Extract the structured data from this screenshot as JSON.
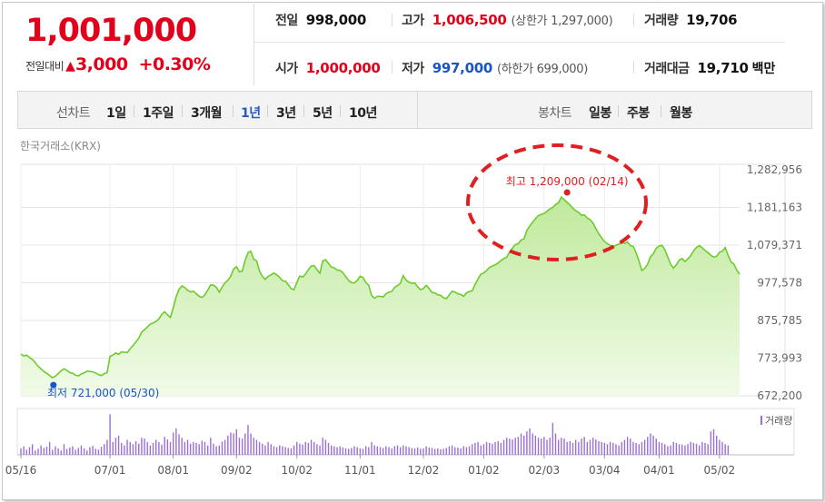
{
  "quote": {
    "price": "1,001,000",
    "change_label": "전일대비",
    "change_arrow": "▲",
    "change_value": "3,000",
    "change_pct": "+0.30%",
    "stats": {
      "prev_close_label": "전일",
      "prev_close": "998,000",
      "high_label": "고가",
      "high": "1,006,500",
      "upper_limit": "(상한가 1,297,000)",
      "volume_label": "거래량",
      "volume": "19,706",
      "open_label": "시가",
      "open": "1,000,000",
      "low_label": "저가",
      "low": "997,000",
      "lower_limit": "(하한가 699,000)",
      "turnover_label": "거래대금",
      "turnover": "19,710",
      "turnover_unit": "백만"
    }
  },
  "tabs": {
    "line_label": "선차트",
    "line_items": [
      "1일",
      "1주일",
      "3개월",
      "1년",
      "3년",
      "5년",
      "10년"
    ],
    "line_active": "1년",
    "candle_label": "봉차트",
    "candle_items": [
      "일봉",
      "주봉",
      "월봉"
    ]
  },
  "exchange": "한국거래소(KRX)",
  "colors": {
    "up": "#e3001b",
    "down": "#1a55c7",
    "line": "#6ecb2c",
    "area_top": "#bfe99c",
    "area_bottom": "#f1fbe8",
    "volume": "#9b6fd6",
    "highlight": "#e02020"
  },
  "chart_data": {
    "type": "area",
    "xlabel": "",
    "ylabel": "",
    "x_ticks": [
      "05/16",
      "07/01",
      "08/01",
      "09/02",
      "10/02",
      "11/01",
      "12/02",
      "01/02",
      "02/03",
      "03/04",
      "04/01",
      "05/02"
    ],
    "x_tick_index": [
      0,
      31,
      53,
      75,
      96,
      118,
      140,
      161,
      182,
      203,
      222,
      243
    ],
    "y_ticks": [
      "1,282,956",
      "1,181,163",
      "1,079,371",
      "977,578",
      "875,785",
      "773,993",
      "672,200"
    ],
    "ylim": [
      672200,
      1282956
    ],
    "grid": true,
    "series": [
      {
        "values": [
          785000,
          780000,
          782000,
          776000,
          770000,
          762000,
          752000,
          745000,
          738000,
          733000,
          727000,
          721000,
          725000,
          732000,
          740000,
          745000,
          741000,
          735000,
          733000,
          728000,
          726000,
          731000,
          734000,
          739000,
          738000,
          737000,
          734000,
          729000,
          727000,
          732000,
          735000,
          779000,
          782000,
          788000,
          784000,
          791000,
          790000,
          789000,
          799000,
          808000,
          818000,
          828000,
          844000,
          851000,
          858000,
          866000,
          869000,
          873000,
          880000,
          892000,
          899000,
          891000,
          884000,
          910000,
          940000,
          960000,
          969000,
          965000,
          957000,
          953000,
          955000,
          948000,
          941000,
          938000,
          945000,
          958000,
          972000,
          971000,
          965000,
          952000,
          966000,
          977000,
          984000,
          996000,
          1015000,
          1021000,
          1007000,
          1009000,
          1038000,
          1059000,
          1063000,
          1041000,
          1037000,
          1009000,
          995000,
          987000,
          995000,
          999000,
          1004000,
          999000,
          992000,
          983000,
          982000,
          972000,
          962000,
          959000,
          978000,
          996000,
          993000,
          1001000,
          1013000,
          1023000,
          1024000,
          1013000,
          1003000,
          1037000,
          1040000,
          1030000,
          1020000,
          1018000,
          1012000,
          1011000,
          1005000,
          994000,
          984000,
          978000,
          977000,
          984000,
          995000,
          992000,
          978000,
          971000,
          943000,
          936000,
          941000,
          941000,
          939000,
          948000,
          952000,
          954000,
          965000,
          970000,
          976000,
          997000,
          985000,
          979000,
          976000,
          977000,
          967000,
          959000,
          962000,
          971000,
          962000,
          951000,
          950000,
          945000,
          944000,
          937000,
          935000,
          945000,
          955000,
          952000,
          948000,
          946000,
          941000,
          950000,
          954000,
          956000,
          973000,
          988000,
          1001000,
          1004000,
          1011000,
          1019000,
          1023000,
          1026000,
          1031000,
          1038000,
          1043000,
          1047000,
          1061000,
          1071000,
          1081000,
          1083000,
          1093000,
          1096000,
          1119000,
          1131000,
          1141000,
          1151000,
          1159000,
          1162000,
          1165000,
          1171000,
          1177000,
          1181000,
          1189000,
          1194000,
          1209000,
          1202000,
          1195000,
          1188000,
          1179000,
          1172000,
          1168000,
          1160000,
          1161000,
          1153000,
          1148000,
          1139000,
          1124000,
          1110000,
          1099000,
          1089000,
          1083000,
          1079000,
          1076000,
          1079000,
          1082000,
          1088000,
          1084000,
          1088000,
          1078000,
          1076000,
          1059000,
          1036000,
          1011000,
          1016000,
          1028000,
          1048000,
          1056000,
          1071000,
          1077000,
          1079000,
          1067000,
          1047000,
          1028000,
          1017000,
          1026000,
          1039000,
          1043000,
          1035000,
          1042000,
          1051000,
          1064000,
          1073000,
          1078000,
          1072000,
          1065000,
          1059000,
          1052000,
          1047000,
          1049000,
          1060000,
          1063000,
          1073000,
          1052000,
          1034000,
          1028000,
          1012000,
          1001000
        ]
      }
    ],
    "volume_label": "거래량",
    "volume_relative": [
      0.15,
      0.2,
      0.12,
      0.18,
      0.25,
      0.1,
      0.14,
      0.22,
      0.16,
      0.19,
      0.3,
      0.12,
      0.2,
      0.15,
      0.1,
      0.25,
      0.14,
      0.17,
      0.2,
      0.12,
      0.16,
      0.22,
      0.15,
      0.1,
      0.18,
      0.21,
      0.14,
      0.12,
      0.19,
      0.25,
      0.35,
      0.95,
      0.3,
      0.4,
      0.45,
      0.28,
      0.22,
      0.35,
      0.3,
      0.25,
      0.32,
      0.26,
      0.4,
      0.38,
      0.3,
      0.22,
      0.28,
      0.35,
      0.3,
      0.24,
      0.42,
      0.36,
      0.3,
      0.52,
      0.62,
      0.48,
      0.4,
      0.3,
      0.35,
      0.26,
      0.3,
      0.28,
      0.25,
      0.33,
      0.3,
      0.22,
      0.4,
      0.26,
      0.2,
      0.22,
      0.31,
      0.35,
      0.45,
      0.52,
      0.5,
      0.6,
      0.4,
      0.38,
      0.5,
      0.7,
      0.5,
      0.4,
      0.35,
      0.3,
      0.26,
      0.22,
      0.3,
      0.25,
      0.2,
      0.18,
      0.22,
      0.2,
      0.18,
      0.16,
      0.15,
      0.22,
      0.3,
      0.26,
      0.24,
      0.3,
      0.28,
      0.35,
      0.3,
      0.25,
      0.22,
      0.4,
      0.35,
      0.28,
      0.22,
      0.2,
      0.18,
      0.2,
      0.17,
      0.15,
      0.14,
      0.16,
      0.2,
      0.18,
      0.15,
      0.14,
      0.2,
      0.18,
      0.3,
      0.22,
      0.2,
      0.18,
      0.16,
      0.2,
      0.18,
      0.15,
      0.2,
      0.22,
      0.18,
      0.22,
      0.2,
      0.18,
      0.16,
      0.15,
      0.17,
      0.14,
      0.15,
      0.2,
      0.17,
      0.16,
      0.14,
      0.15,
      0.13,
      0.14,
      0.16,
      0.2,
      0.22,
      0.18,
      0.17,
      0.15,
      0.2,
      0.18,
      0.2,
      0.25,
      0.28,
      0.3,
      0.22,
      0.25,
      0.3,
      0.28,
      0.26,
      0.3,
      0.32,
      0.28,
      0.35,
      0.4,
      0.38,
      0.36,
      0.4,
      0.42,
      0.5,
      0.45,
      0.55,
      0.62,
      0.5,
      0.45,
      0.4,
      0.38,
      0.42,
      0.35,
      0.4,
      0.75,
      0.5,
      0.35,
      0.4,
      0.38,
      0.3,
      0.32,
      0.28,
      0.35,
      0.3,
      0.38,
      0.42,
      0.3,
      0.35,
      0.4,
      0.36,
      0.32,
      0.3,
      0.28,
      0.25,
      0.3,
      0.28,
      0.25,
      0.22,
      0.3,
      0.35,
      0.42,
      0.38,
      0.3,
      0.28,
      0.25,
      0.3,
      0.35,
      0.42,
      0.5,
      0.45,
      0.38,
      0.3,
      0.28,
      0.25,
      0.2,
      0.22,
      0.3,
      0.28,
      0.25,
      0.24,
      0.22,
      0.25,
      0.3,
      0.28,
      0.26,
      0.22,
      0.3,
      0.28,
      0.25,
      0.55,
      0.6,
      0.45,
      0.35,
      0.3,
      0.25,
      0.22
    ],
    "annotations": {
      "high": {
        "label": "최고",
        "value": "1,209,000",
        "date": "(02/14)",
        "index": 190
      },
      "low": {
        "label": "최저",
        "value": "721,000",
        "date": "(05/30)",
        "index": 11
      }
    }
  }
}
